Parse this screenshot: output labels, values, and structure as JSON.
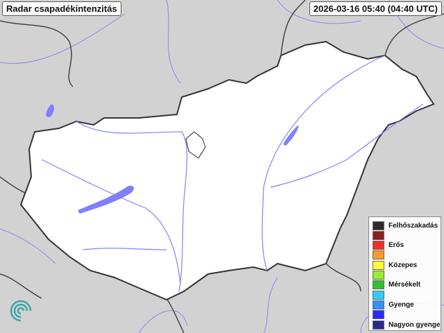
{
  "title": "Radar csapadékintenzitás",
  "timestamp": "2026-03-16 05:40 (04:40 UTC)",
  "legend": [
    {
      "label": "Felhőszakadás",
      "color": "#2b2b2b"
    },
    {
      "label": "",
      "color": "#8b2020"
    },
    {
      "label": "Erős",
      "color": "#ff2a2a"
    },
    {
      "label": "",
      "color": "#ff9a2a"
    },
    {
      "label": "Közepes",
      "color": "#ffff30"
    },
    {
      "label": "",
      "color": "#99ee30"
    },
    {
      "label": "Mérsékelt",
      "color": "#30c030"
    },
    {
      "label": "",
      "color": "#30ccff"
    },
    {
      "label": "Gyenge",
      "color": "#3090ff"
    },
    {
      "label": "",
      "color": "#2a2aff"
    },
    {
      "label": "Nagyon gyenge",
      "color": "#2a2a90"
    }
  ],
  "colors": {
    "background": "#d4d4d4",
    "country_fill": "#ffffff",
    "water": "#7f7fff",
    "border": "#333333"
  },
  "icons": {
    "logo": "swirl-logo-icon"
  }
}
